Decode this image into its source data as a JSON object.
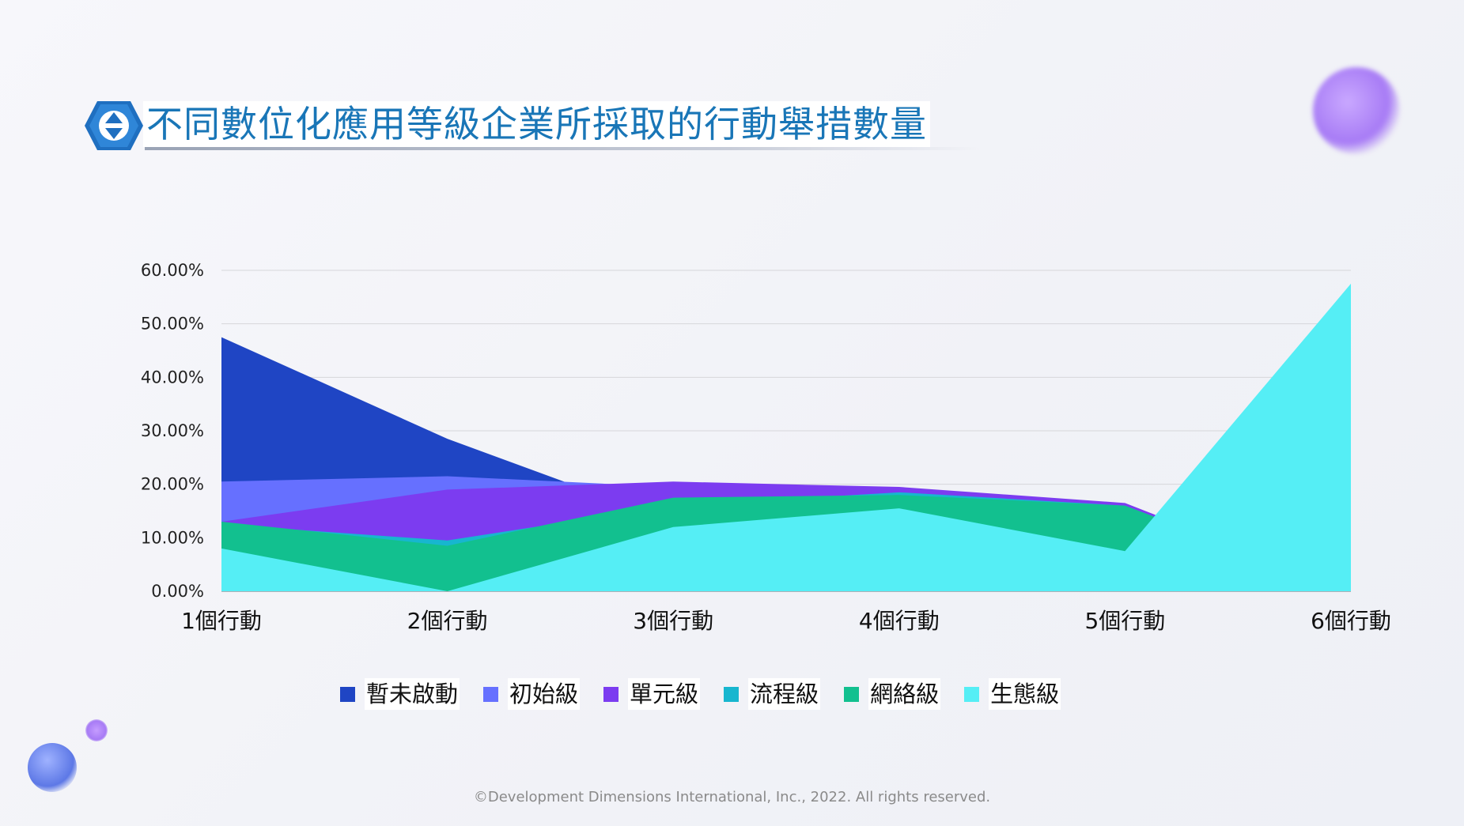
{
  "title": "不同數位化應用等級企業所採取的行動舉措數量",
  "footer": "©Development Dimensions International, Inc., 2022. All rights reserved.",
  "colors": {
    "title": "#1976b7",
    "badge": "#1f6fc0",
    "grid": "#d6d6da"
  },
  "chart_data": {
    "type": "area",
    "categories": [
      "1個行動",
      "2個行動",
      "3個行動",
      "4個行動",
      "5個行動",
      "6個行動"
    ],
    "ylim": [
      0,
      60
    ],
    "yticks": [
      "0.00%",
      "10.00%",
      "20.00%",
      "30.00%",
      "40.00%",
      "50.00%",
      "60.00%"
    ],
    "ytick_values": [
      0,
      10,
      20,
      30,
      40,
      50,
      60
    ],
    "grid": true,
    "legend_position": "bottom",
    "series": [
      {
        "name": "暫未啟動",
        "color": "#1f45c4",
        "values": [
          47.5,
          28.5,
          13.0,
          18.0,
          15.0,
          0
        ]
      },
      {
        "name": "初始級",
        "color": "#6670ff",
        "values": [
          20.5,
          21.5,
          19.5,
          19.0,
          16.0,
          0
        ]
      },
      {
        "name": "單元級",
        "color": "#7c3cf0",
        "values": [
          13.0,
          19.0,
          20.5,
          19.5,
          16.5,
          0
        ]
      },
      {
        "name": "流程級",
        "color": "#17b6cf",
        "values": [
          12.5,
          9.5,
          16.0,
          18.5,
          16.0,
          0
        ]
      },
      {
        "name": "網絡級",
        "color": "#12c08f",
        "values": [
          13.0,
          8.5,
          17.5,
          18.0,
          16.0,
          0
        ]
      },
      {
        "name": "生態級",
        "color": "#55eef5",
        "values": [
          8.0,
          0.0,
          12.0,
          15.5,
          7.5,
          57.5
        ]
      }
    ]
  }
}
